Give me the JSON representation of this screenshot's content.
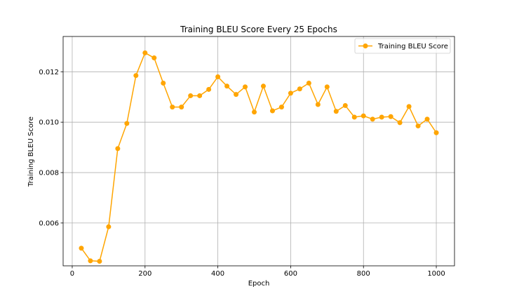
{
  "chart_data": {
    "type": "line",
    "title": "Training BLEU Score Every 25 Epochs",
    "xlabel": "Epoch",
    "ylabel": "Training BLEU Score",
    "xlim": [
      -25,
      1050
    ],
    "ylim": [
      0.0043,
      0.0134
    ],
    "xticks": [
      0,
      200,
      400,
      600,
      800,
      1000
    ],
    "xtick_labels": [
      "0",
      "200",
      "400",
      "600",
      "800",
      "1000"
    ],
    "yticks": [
      0.006,
      0.008,
      0.01,
      0.012
    ],
    "ytick_labels": [
      "0.006",
      "0.008",
      "0.010",
      "0.012"
    ],
    "grid": true,
    "legend_position": "top-right",
    "series": [
      {
        "name": "Training BLEU Score",
        "color": "#FFA500",
        "marker": "circle",
        "x": [
          25,
          50,
          75,
          100,
          125,
          150,
          175,
          200,
          225,
          250,
          275,
          300,
          325,
          350,
          375,
          400,
          425,
          450,
          475,
          500,
          525,
          550,
          575,
          600,
          625,
          650,
          675,
          700,
          725,
          750,
          775,
          800,
          825,
          850,
          875,
          900,
          925,
          950,
          975,
          1000
        ],
        "y": [
          0.005,
          0.0045,
          0.00448,
          0.00585,
          0.00895,
          0.00995,
          0.01185,
          0.01275,
          0.01255,
          0.01155,
          0.0106,
          0.0106,
          0.01105,
          0.01105,
          0.0113,
          0.0118,
          0.01143,
          0.0111,
          0.0114,
          0.0104,
          0.01143,
          0.01045,
          0.0106,
          0.01115,
          0.01132,
          0.01155,
          0.0107,
          0.0114,
          0.01043,
          0.01066,
          0.0102,
          0.01025,
          0.01012,
          0.0102,
          0.01022,
          0.00998,
          0.01062,
          0.00985,
          0.01012,
          0.00958
        ]
      }
    ]
  }
}
